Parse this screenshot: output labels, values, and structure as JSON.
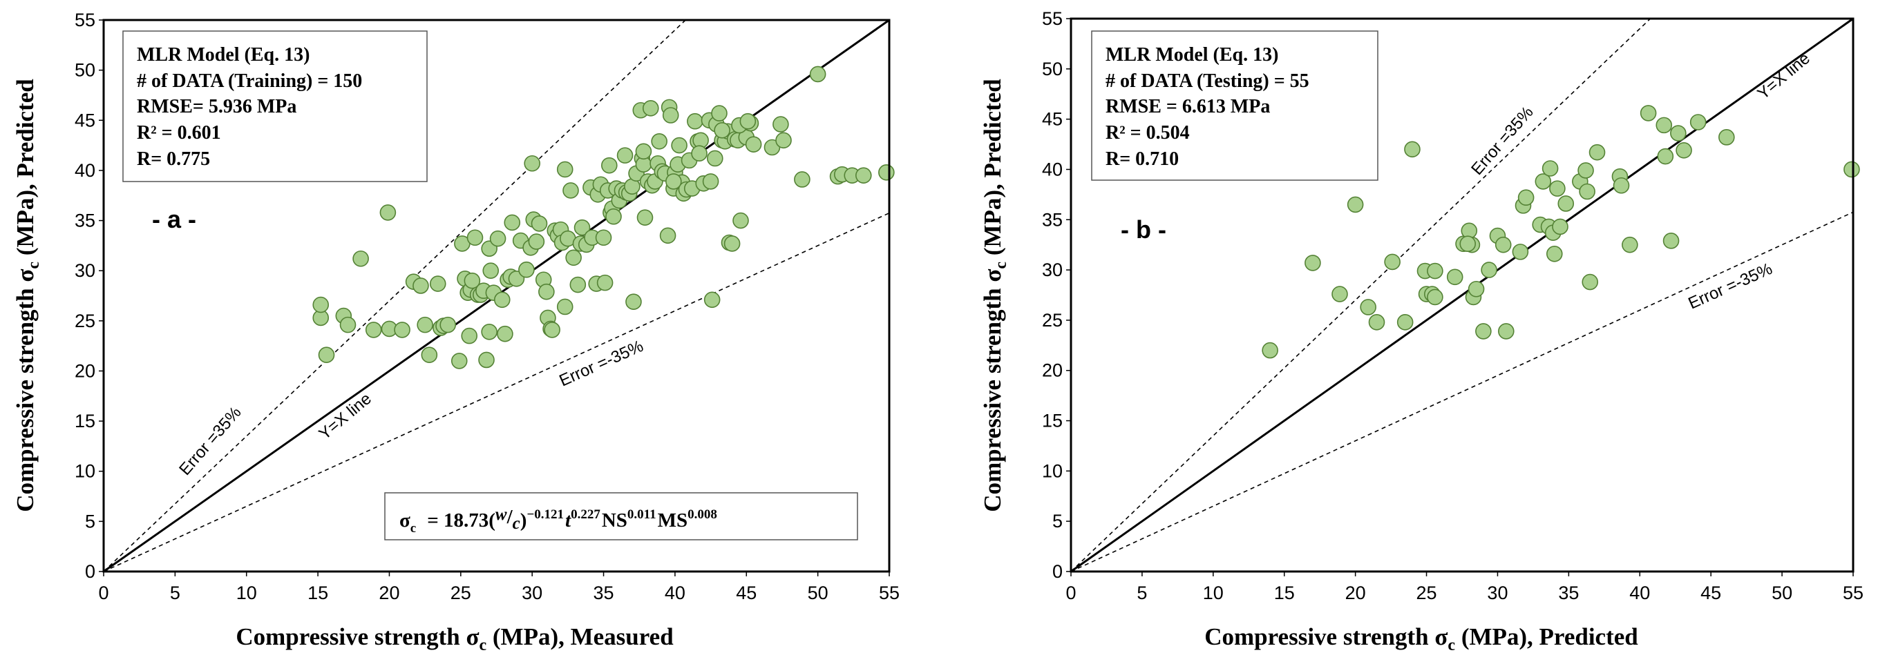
{
  "chart_data": [
    {
      "type": "scatter",
      "panel_label": "- a -",
      "xlabel": "Compressive strength σ_c (MPa), Measured",
      "ylabel": "Compressive strength σ_c (MPa), Predicted",
      "xlim": [
        0,
        55
      ],
      "ylim": [
        0,
        55
      ],
      "xticks": [
        0,
        5,
        10,
        15,
        20,
        25,
        30,
        35,
        40,
        45,
        50,
        55
      ],
      "yticks": [
        0,
        5,
        10,
        15,
        20,
        25,
        30,
        35,
        40,
        45,
        50,
        55
      ],
      "grid": false,
      "info_box": [
        "MLR Model (Eq. 13)",
        "# of DATA (Training) = 150",
        "RMSE= 5.936 MPa",
        "R² = 0.601",
        "R= 0.775"
      ],
      "equation": "σc = 18.73(w/c)^−0.121 t^0.227 NS^0.011 MS^0.008",
      "equation_parts": {
        "sigma": "σ",
        "sub_c": "c",
        "eq": "= 18.73(",
        "w": "w",
        "slash": "/",
        "c": "c",
        "close": ")",
        "exp1": "−0.121",
        "t": "t",
        "exp2": "0.227",
        "ns": "NS",
        "exp3": "0.011",
        "ms": "MS",
        "exp4": "0.008"
      },
      "lines": [
        {
          "name": "Y=X line",
          "slope": 1.0,
          "style": "solid"
        },
        {
          "name": "Error =35%",
          "slope": 1.35,
          "style": "dashed"
        },
        {
          "name": "Error =-35%",
          "slope": 0.65,
          "style": "dashed"
        }
      ],
      "series": [
        {
          "x": [
            15.2,
            15.2,
            15.6,
            16.8,
            17.1,
            18.0,
            18.9,
            19.9,
            20.0,
            20.9,
            21.7,
            22.2,
            22.5,
            22.8,
            23.4,
            23.6,
            23.8,
            24.1,
            24.9,
            25.1,
            25.3,
            25.5,
            25.6,
            25.7,
            25.8,
            26.0,
            26.2,
            26.4,
            26.6,
            26.8,
            27.0,
            27.0,
            27.1,
            27.3,
            27.6,
            27.9,
            28.1,
            28.3,
            28.5,
            28.6,
            28.9,
            29.2,
            29.6,
            29.9,
            30.0,
            30.1,
            30.3,
            30.5,
            30.8,
            31.0,
            31.1,
            31.3,
            31.4,
            31.6,
            31.8,
            32.0,
            32.1,
            32.3,
            32.3,
            32.5,
            32.7,
            32.9,
            33.2,
            33.4,
            33.5,
            33.8,
            34.1,
            34.2,
            34.5,
            34.6,
            34.8,
            35.0,
            35.1,
            35.3,
            35.4,
            35.5,
            35.6,
            35.7,
            35.9,
            36.1,
            36.3,
            36.5,
            36.6,
            36.8,
            37.0,
            37.1,
            37.3,
            37.6,
            37.7,
            37.8,
            37.9,
            38.1,
            38.3,
            38.4,
            38.6,
            38.8,
            38.9,
            39.1,
            39.3,
            39.5,
            39.6,
            39.7,
            39.9,
            40.0,
            40.2,
            40.3,
            40.5,
            40.6,
            40.8,
            41.2,
            41.4,
            41.6,
            41.8,
            42.0,
            42.4,
            42.5,
            42.6,
            42.8,
            42.9,
            43.1,
            43.3,
            43.5,
            43.7,
            43.8,
            44.0,
            44.2,
            44.4,
            44.6,
            44.8,
            45.0,
            45.2,
            45.3,
            45.5,
            46.8,
            47.4,
            47.6,
            48.9,
            50.0,
            51.4,
            51.7,
            52.4,
            53.2,
            54.8,
            39.9,
            41.0,
            41.7,
            43.3,
            44.5,
            45.1,
            37.8
          ],
          "y": [
            25.3,
            26.6,
            21.6,
            25.5,
            24.6,
            31.2,
            24.1,
            35.8,
            24.2,
            24.1,
            28.9,
            28.5,
            24.6,
            21.6,
            28.7,
            24.3,
            24.5,
            24.6,
            21.0,
            32.7,
            29.2,
            27.8,
            23.5,
            28.1,
            29.0,
            33.3,
            27.6,
            27.6,
            28.0,
            21.1,
            23.9,
            32.2,
            30.0,
            27.8,
            33.2,
            27.1,
            23.7,
            29.1,
            29.4,
            34.8,
            29.2,
            33.0,
            30.1,
            32.3,
            40.7,
            35.1,
            32.9,
            34.7,
            29.1,
            27.9,
            25.3,
            24.2,
            24.1,
            34.0,
            33.5,
            34.1,
            32.8,
            26.4,
            40.1,
            33.2,
            38.0,
            31.3,
            28.6,
            32.7,
            34.3,
            32.6,
            38.3,
            33.3,
            28.7,
            37.6,
            38.6,
            33.3,
            28.8,
            38.0,
            40.5,
            35.8,
            36.2,
            35.4,
            38.2,
            37.0,
            38.0,
            41.5,
            37.8,
            37.7,
            38.4,
            26.9,
            39.7,
            46.0,
            41.2,
            40.6,
            35.3,
            38.9,
            46.2,
            38.5,
            38.9,
            40.7,
            42.9,
            39.9,
            39.7,
            33.5,
            46.3,
            45.5,
            38.2,
            39.8,
            40.6,
            42.5,
            38.8,
            37.7,
            38.1,
            38.2,
            44.9,
            42.9,
            43.0,
            38.7,
            45.0,
            38.9,
            27.1,
            41.2,
            44.6,
            45.7,
            43.0,
            42.9,
            43.9,
            32.8,
            32.7,
            43.1,
            43.0,
            35.0,
            44.4,
            43.3,
            44.8,
            44.7,
            42.6,
            42.3,
            44.6,
            43.0,
            39.1,
            49.6,
            39.4,
            39.6,
            39.5,
            39.5,
            39.8,
            38.9,
            41.0,
            41.7,
            44.0,
            44.5,
            44.9,
            41.9
          ]
        }
      ]
    },
    {
      "type": "scatter",
      "panel_label": "- b -",
      "xlabel": "Compressive strength σ_c (MPa), Predicted",
      "ylabel": "Compressive strength σ_c (MPa), Predicted",
      "xlim": [
        0,
        55
      ],
      "ylim": [
        0,
        55
      ],
      "xticks": [
        0,
        5,
        10,
        15,
        20,
        25,
        30,
        35,
        40,
        45,
        50,
        55
      ],
      "yticks": [
        0,
        5,
        10,
        15,
        20,
        25,
        30,
        35,
        40,
        45,
        50,
        55
      ],
      "grid": false,
      "info_box": [
        "MLR Model (Eq. 13)",
        "# of DATA (Testing) = 55",
        "RMSE = 6.613 MPa",
        "R² = 0.504",
        "R= 0.710"
      ],
      "lines": [
        {
          "name": "Y=X line",
          "slope": 1.0,
          "style": "solid"
        },
        {
          "name": "Error =35%",
          "slope": 1.35,
          "style": "dashed"
        },
        {
          "name": "Error =-35%",
          "slope": 0.65,
          "style": "dashed"
        }
      ],
      "series": [
        {
          "x": [
            14.0,
            17.0,
            18.9,
            20.0,
            20.9,
            21.5,
            22.6,
            23.5,
            24.0,
            24.9,
            25.0,
            25.4,
            25.6,
            27.0,
            27.6,
            28.0,
            28.2,
            28.3,
            29.0,
            29.4,
            30.0,
            30.4,
            30.6,
            31.6,
            31.8,
            32.0,
            33.0,
            33.2,
            33.6,
            33.7,
            33.9,
            34.0,
            34.2,
            34.4,
            34.8,
            35.8,
            36.2,
            36.3,
            36.5,
            37.0,
            38.6,
            38.7,
            39.3,
            40.6,
            41.7,
            41.8,
            42.2,
            42.7,
            43.1,
            44.1,
            46.1,
            54.9,
            27.9,
            28.5,
            25.6
          ],
          "y": [
            22.0,
            30.7,
            27.6,
            36.5,
            26.3,
            24.8,
            30.8,
            24.8,
            42.0,
            29.9,
            27.6,
            27.6,
            29.9,
            29.3,
            32.6,
            33.9,
            32.5,
            27.3,
            23.9,
            30.0,
            33.4,
            32.5,
            23.9,
            31.8,
            36.4,
            37.2,
            34.5,
            38.8,
            34.3,
            40.1,
            33.7,
            31.6,
            38.1,
            34.3,
            36.6,
            38.8,
            39.9,
            37.8,
            28.8,
            41.7,
            39.3,
            38.4,
            32.5,
            45.6,
            44.4,
            41.3,
            32.9,
            43.6,
            41.9,
            44.7,
            43.2,
            40.0,
            32.6,
            28.1,
            27.3
          ]
        }
      ]
    }
  ]
}
